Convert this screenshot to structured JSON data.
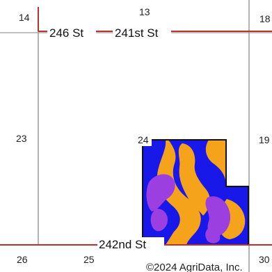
{
  "colors": {
    "background": "#ffffff",
    "section_line": "#9a9a9a",
    "road": "#c0302a",
    "boundary": "#111111",
    "soil_orange": "#f6a31c",
    "soil_blue": "#1818e8",
    "soil_purple": "#9b3fe0"
  },
  "sections": [
    {
      "id": "s14",
      "label": "14"
    },
    {
      "id": "s13",
      "label": "13"
    },
    {
      "id": "s18",
      "label": "18"
    },
    {
      "id": "s23",
      "label": "23"
    },
    {
      "id": "s24",
      "label": "24"
    },
    {
      "id": "s19",
      "label": "19"
    },
    {
      "id": "s26",
      "label": "26"
    },
    {
      "id": "s25",
      "label": "25"
    },
    {
      "id": "s30",
      "label": "30"
    }
  ],
  "roads": [
    {
      "id": "r246",
      "label": "246 St"
    },
    {
      "id": "r241",
      "label": "241st St"
    },
    {
      "id": "r242",
      "label": "242nd St"
    }
  ],
  "soil_legend_colors": [
    "orange",
    "blue",
    "purple"
  ],
  "copyright": "©2024 AgriData, Inc."
}
